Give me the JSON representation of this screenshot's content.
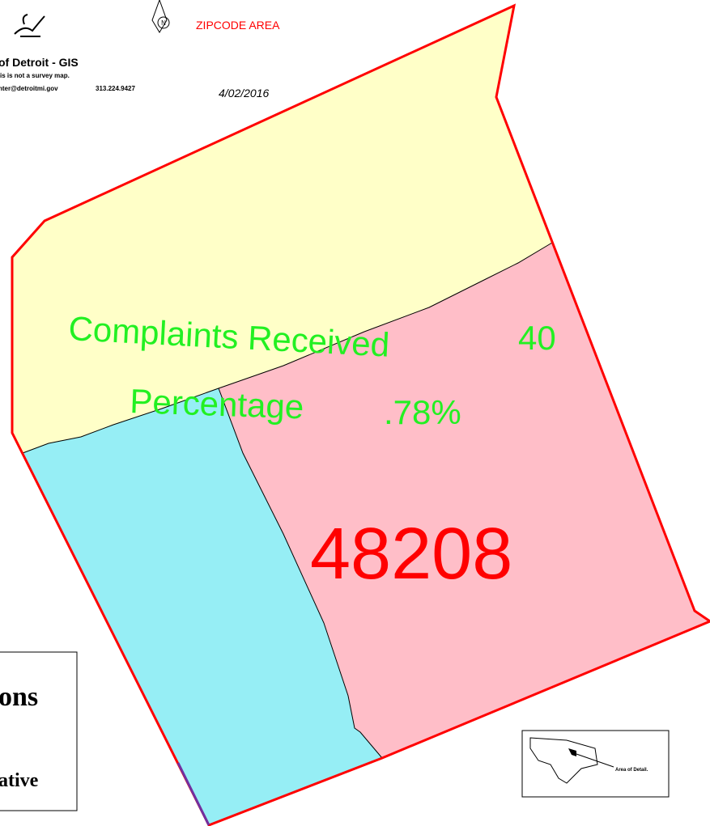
{
  "header": {
    "agency": "of Detroit - GIS",
    "disclaimer": "is is not a survey map.",
    "email": "nter@detroitmi.gov",
    "phone": "313.224.9427",
    "date": "4/02/2016",
    "north": "N",
    "title": "ZIPCODE AREA"
  },
  "labels": {
    "complaints_label": "Complaints Received",
    "complaints_value": "40",
    "percentage_label": "Percentage",
    "percentage_value": ".78%",
    "zipcode": "48208"
  },
  "legend": {
    "line1": "ons",
    "line2": "ative"
  },
  "inset": {
    "label": "Area of Detail."
  }
}
